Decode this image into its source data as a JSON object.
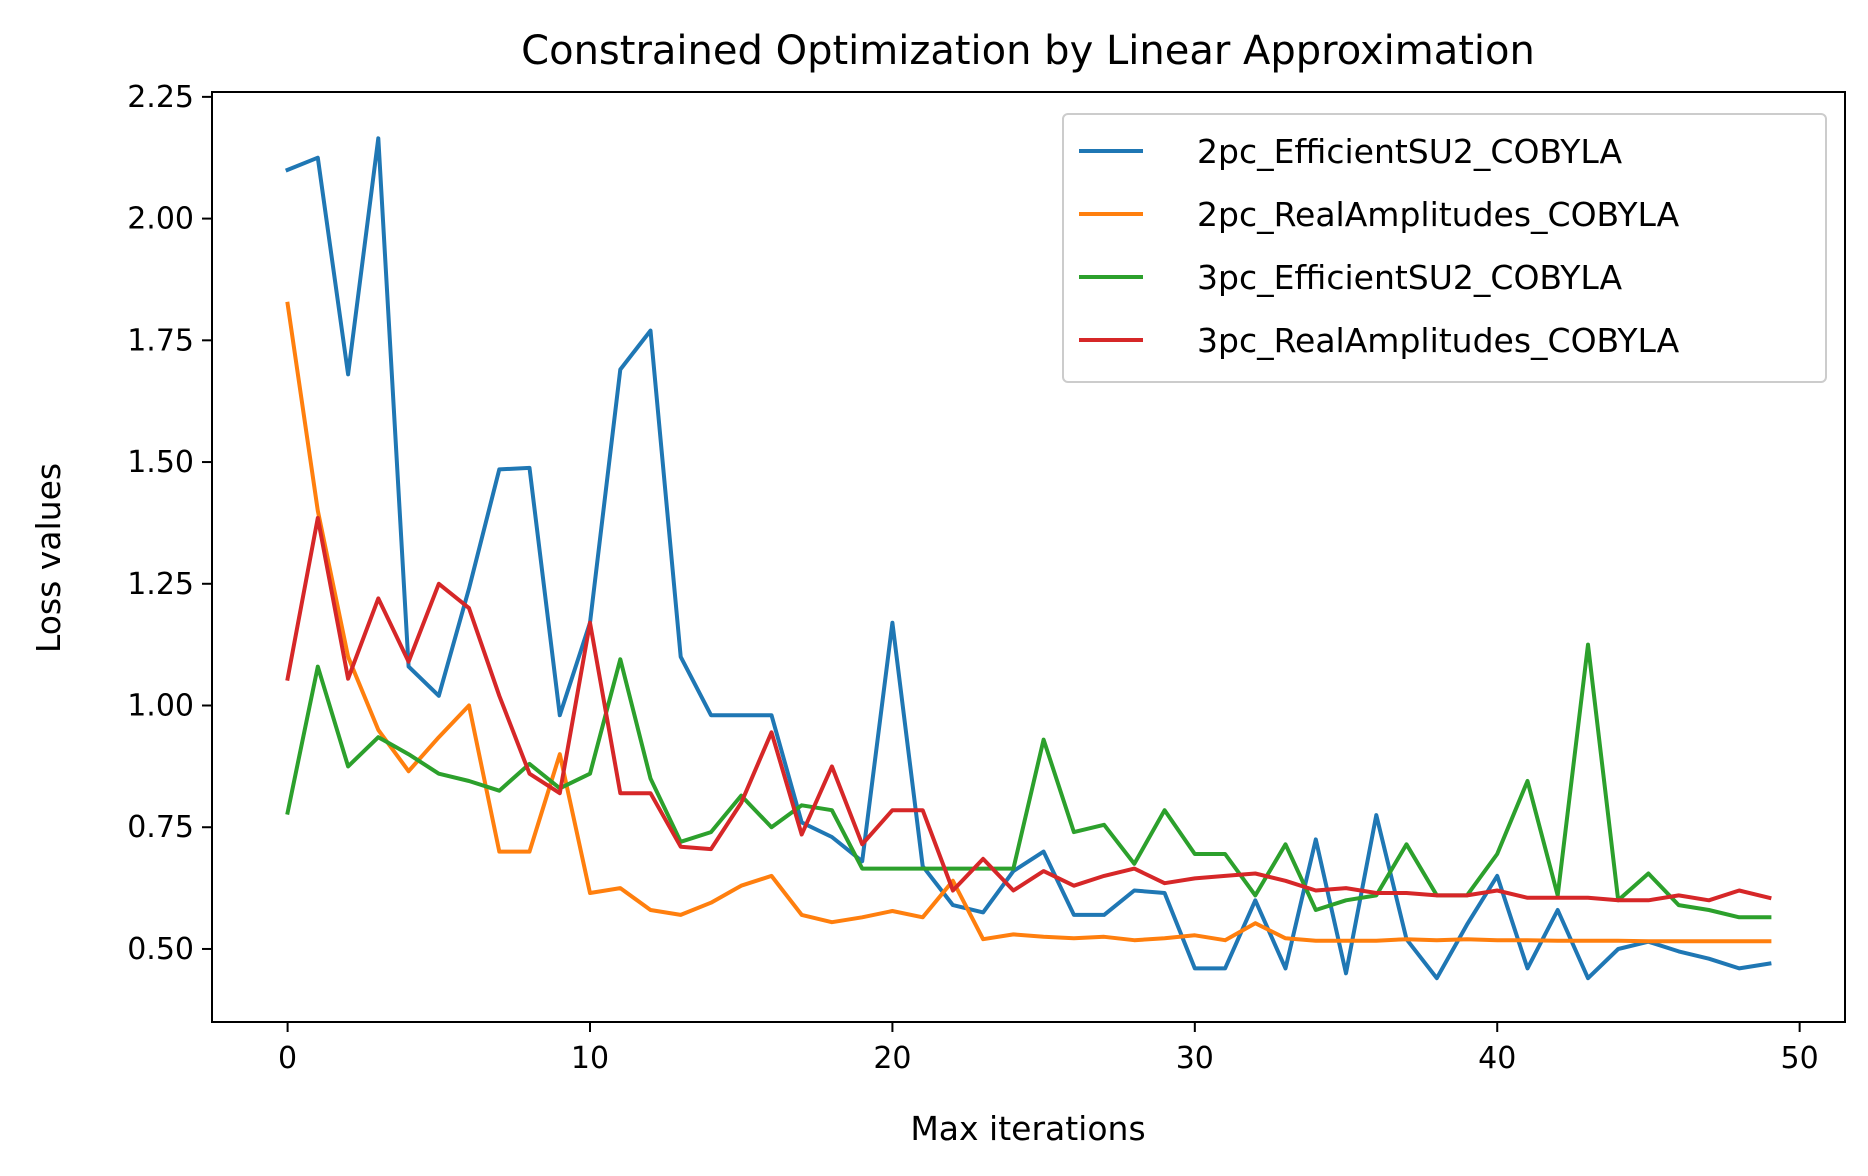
{
  "chart_data": {
    "type": "line",
    "title": "Constrained Optimization by Linear Approximation",
    "xlabel": "Max iterations",
    "ylabel": "Loss values",
    "xlim": [
      -2.5,
      51.5
    ],
    "ylim": [
      0.35,
      2.26
    ],
    "xticks": [
      0,
      10,
      20,
      30,
      40,
      50
    ],
    "xtick_labels": [
      "0",
      "10",
      "20",
      "30",
      "40",
      "50"
    ],
    "yticks": [
      0.5,
      0.75,
      1.0,
      1.25,
      1.5,
      1.75,
      2.0,
      2.25
    ],
    "ytick_labels": [
      "0.50",
      "0.75",
      "1.00",
      "1.25",
      "1.50",
      "1.75",
      "2.00",
      "2.25"
    ],
    "grid": false,
    "legend_position": "upper right",
    "x": [
      0,
      1,
      2,
      3,
      4,
      5,
      6,
      7,
      8,
      9,
      10,
      11,
      12,
      13,
      14,
      15,
      16,
      17,
      18,
      19,
      20,
      21,
      22,
      23,
      24,
      25,
      26,
      27,
      28,
      29,
      30,
      31,
      32,
      33,
      34,
      35,
      36,
      37,
      38,
      39,
      40,
      41,
      42,
      43,
      44,
      45,
      46,
      47,
      48,
      49
    ],
    "series": [
      {
        "name": "2pc_EfficientSU2_COBYLA",
        "color": "#1f77b4",
        "values": [
          2.1,
          2.125,
          1.68,
          2.165,
          1.08,
          1.02,
          1.24,
          1.485,
          1.488,
          0.98,
          1.17,
          1.69,
          1.77,
          1.1,
          0.98,
          0.98,
          0.98,
          0.76,
          0.73,
          0.68,
          1.17,
          0.67,
          0.59,
          0.575,
          0.66,
          0.7,
          0.57,
          0.57,
          0.62,
          0.615,
          0.46,
          0.46,
          0.6,
          0.46,
          0.725,
          0.45,
          0.775,
          0.52,
          0.44,
          0.55,
          0.65,
          0.46,
          0.58,
          0.44,
          0.5,
          0.515,
          0.495,
          0.48,
          0.46,
          0.47
        ]
      },
      {
        "name": "2pc_RealAmplitudes_COBYLA",
        "color": "#ff7f0e",
        "values": [
          1.825,
          1.4,
          1.1,
          0.95,
          0.865,
          0.935,
          1.0,
          0.7,
          0.7,
          0.9,
          0.615,
          0.625,
          0.58,
          0.57,
          0.595,
          0.63,
          0.65,
          0.57,
          0.555,
          0.565,
          0.578,
          0.565,
          0.64,
          0.52,
          0.53,
          0.525,
          0.522,
          0.525,
          0.518,
          0.522,
          0.528,
          0.518,
          0.553,
          0.522,
          0.517,
          0.517,
          0.517,
          0.52,
          0.518,
          0.52,
          0.518,
          0.518,
          0.517,
          0.517,
          0.517,
          0.516,
          0.516,
          0.516,
          0.516,
          0.516
        ]
      },
      {
        "name": "3pc_EfficientSU2_COBYLA",
        "color": "#2ca02c",
        "values": [
          0.78,
          1.08,
          0.875,
          0.935,
          0.9,
          0.86,
          0.845,
          0.825,
          0.88,
          0.83,
          0.86,
          1.095,
          0.85,
          0.72,
          0.74,
          0.815,
          0.75,
          0.795,
          0.785,
          0.665,
          0.665,
          0.665,
          0.665,
          0.665,
          0.665,
          0.93,
          0.74,
          0.755,
          0.675,
          0.785,
          0.695,
          0.695,
          0.61,
          0.715,
          0.58,
          0.6,
          0.61,
          0.715,
          0.61,
          0.61,
          0.695,
          0.845,
          0.61,
          1.125,
          0.6,
          0.655,
          0.59,
          0.58,
          0.565,
          0.565
        ]
      },
      {
        "name": "3pc_RealAmplitudes_COBYLA",
        "color": "#d62728",
        "values": [
          1.055,
          1.385,
          1.055,
          1.22,
          1.09,
          1.25,
          1.2,
          1.02,
          0.86,
          0.82,
          1.17,
          0.82,
          0.82,
          0.71,
          0.705,
          0.8,
          0.945,
          0.735,
          0.875,
          0.715,
          0.785,
          0.785,
          0.62,
          0.685,
          0.62,
          0.66,
          0.63,
          0.65,
          0.665,
          0.635,
          0.645,
          0.65,
          0.655,
          0.64,
          0.62,
          0.625,
          0.615,
          0.615,
          0.61,
          0.61,
          0.62,
          0.605,
          0.605,
          0.605,
          0.6,
          0.6,
          0.61,
          0.6,
          0.62,
          0.605
        ]
      }
    ]
  }
}
